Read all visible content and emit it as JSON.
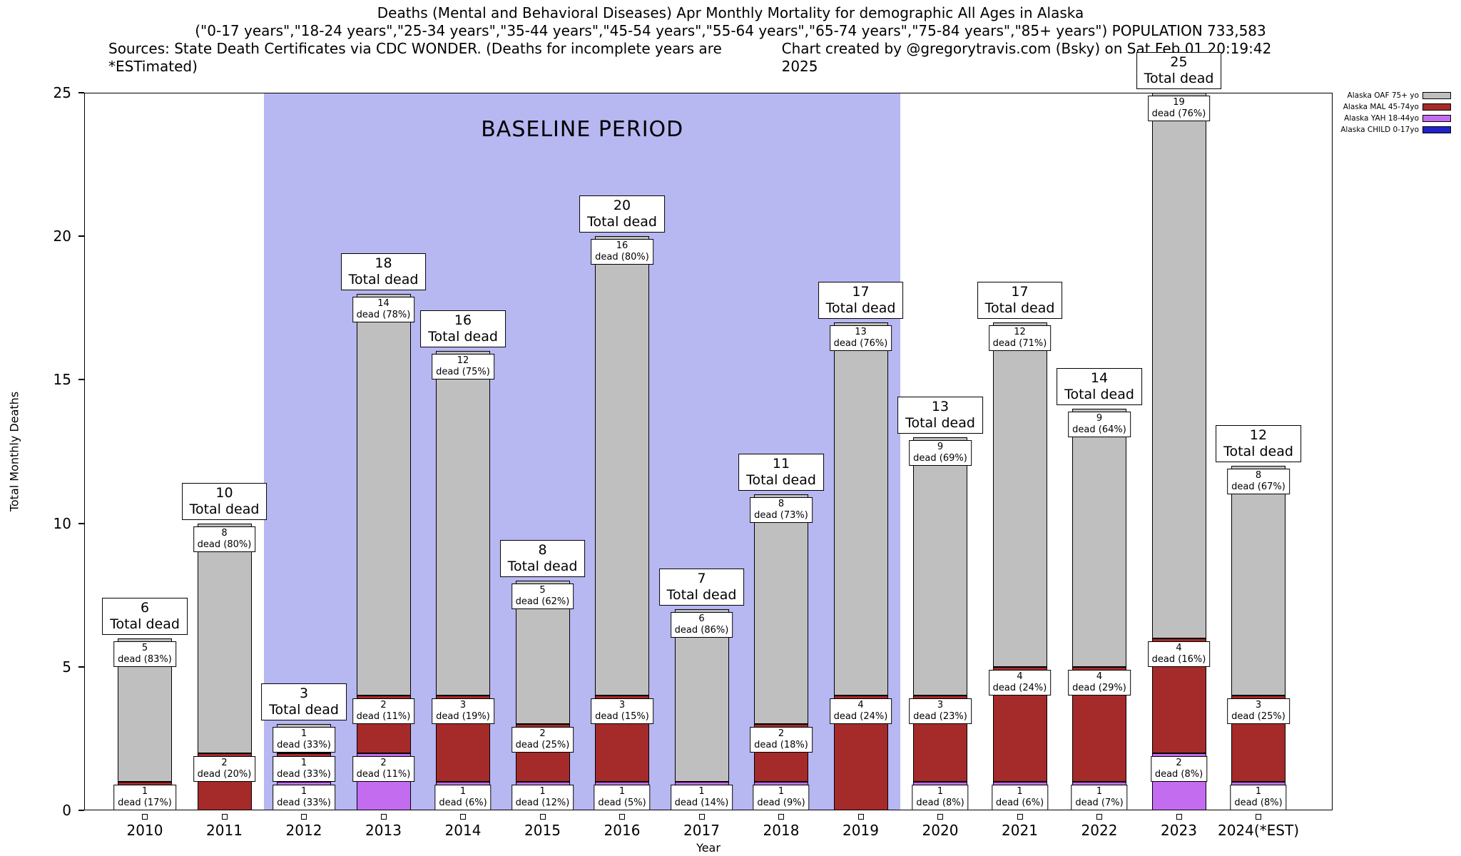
{
  "title": {
    "line1": "Deaths (Mental and Behavioral Diseases) Apr Monthly Mortality for demographic All Ages in Alaska",
    "line2": "(\"0-17 years\",\"18-24 years\",\"25-34 years\",\"35-44 years\",\"45-54 years\",\"55-64 years\",\"65-74 years\",\"75-84 years\",\"85+ years\") POPULATION 733,583",
    "line3_left": "Sources: State Death Certificates via CDC WONDER. (Deaths for incomplete years are *ESTimated)",
    "line3_right": "Chart created by @gregorytravis.com (Bsky) on Sat Feb 01 20:19:42 2025"
  },
  "legend": {
    "entries": [
      {
        "series": "OAF",
        "label": "Alaska OAF 75+ yo",
        "color": "#bfbfbf"
      },
      {
        "series": "MAL",
        "label": "Alaska MAL 45-74yo",
        "color": "#a52a2a"
      },
      {
        "series": "YAH",
        "label": "Alaska YAH 18-44yo",
        "color": "#c46cf0"
      },
      {
        "series": "CHILD",
        "label": "Alaska CHILD 0-17yo",
        "color": "#2222cc"
      }
    ]
  },
  "chart_data": {
    "type": "bar",
    "stacked": true,
    "title": "Deaths (Mental and Behavioral Diseases) Apr Monthly Mortality for demographic All Ages in Alaska",
    "xlabel": "Year",
    "ylabel": "Total Monthly Deaths",
    "ylim": [
      0,
      25
    ],
    "yticks": [
      0,
      5,
      10,
      15,
      20,
      25
    ],
    "baseline": {
      "label": "BASELINE PERIOD",
      "from_year": "2012",
      "to_year": "2019",
      "color": "#b7b7f2"
    },
    "categories": [
      "2010",
      "2011",
      "2012",
      "2013",
      "2014",
      "2015",
      "2016",
      "2017",
      "2018",
      "2019",
      "2020",
      "2021",
      "2022",
      "2023",
      "2024(*EST)"
    ],
    "series": [
      {
        "key": "CHILD",
        "name": "Alaska CHILD 0-17yo",
        "color": "#2222cc",
        "values": [
          0,
          0,
          0,
          0,
          0,
          0,
          0,
          0,
          0,
          0,
          0,
          0,
          0,
          0,
          0
        ]
      },
      {
        "key": "YAH",
        "name": "Alaska YAH 18-44yo",
        "color": "#c46cf0",
        "values": [
          0,
          0,
          1,
          2,
          1,
          1,
          1,
          1,
          1,
          0,
          1,
          1,
          1,
          2,
          1
        ]
      },
      {
        "key": "MAL",
        "name": "Alaska MAL 45-74yo",
        "color": "#a52a2a",
        "values": [
          1,
          2,
          1,
          2,
          3,
          2,
          3,
          0,
          2,
          4,
          3,
          4,
          4,
          4,
          3
        ]
      },
      {
        "key": "OAF",
        "name": "Alaska OAF 75+ yo",
        "color": "#bfbfbf",
        "values": [
          5,
          8,
          1,
          14,
          12,
          5,
          16,
          6,
          8,
          13,
          9,
          12,
          9,
          19,
          8
        ]
      }
    ],
    "totals": [
      6,
      10,
      3,
      18,
      16,
      8,
      20,
      7,
      11,
      17,
      13,
      17,
      14,
      25,
      12
    ],
    "total_label_suffix": "Total dead",
    "bars": [
      {
        "year": "2010",
        "total": 6,
        "segments": [
          {
            "series": "MAL",
            "value": 1,
            "label": "dead (17%)"
          },
          {
            "series": "OAF",
            "value": 5,
            "label": "dead (83%)"
          }
        ]
      },
      {
        "year": "2011",
        "total": 10,
        "segments": [
          {
            "series": "MAL",
            "value": 2,
            "label": "dead (20%)"
          },
          {
            "series": "OAF",
            "value": 8,
            "label": "dead (80%)"
          }
        ]
      },
      {
        "year": "2012",
        "total": 3,
        "segments": [
          {
            "series": "YAH",
            "value": 1,
            "label": "dead (33%)"
          },
          {
            "series": "MAL",
            "value": 1,
            "label": "dead (33%)"
          },
          {
            "series": "OAF",
            "value": 1,
            "label": "dead (33%)"
          }
        ]
      },
      {
        "year": "2013",
        "total": 18,
        "segments": [
          {
            "series": "YAH",
            "value": 2,
            "label": "dead (11%)"
          },
          {
            "series": "MAL",
            "value": 2,
            "label": "dead (11%)"
          },
          {
            "series": "OAF",
            "value": 14,
            "label": "dead (78%)"
          }
        ]
      },
      {
        "year": "2014",
        "total": 16,
        "segments": [
          {
            "series": "YAH",
            "value": 1,
            "label": "dead (6%)"
          },
          {
            "series": "MAL",
            "value": 3,
            "label": "dead (19%)"
          },
          {
            "series": "OAF",
            "value": 12,
            "label": "dead (75%)"
          }
        ]
      },
      {
        "year": "2015",
        "total": 8,
        "segments": [
          {
            "series": "YAH",
            "value": 1,
            "label": "dead (12%)"
          },
          {
            "series": "MAL",
            "value": 2,
            "label": "dead (25%)"
          },
          {
            "series": "OAF",
            "value": 5,
            "label": "dead (62%)"
          }
        ]
      },
      {
        "year": "2016",
        "total": 20,
        "segments": [
          {
            "series": "YAH",
            "value": 1,
            "label": "dead (5%)"
          },
          {
            "series": "MAL",
            "value": 3,
            "label": "dead (15%)"
          },
          {
            "series": "OAF",
            "value": 16,
            "label": "dead (80%)"
          }
        ]
      },
      {
        "year": "2017",
        "total": 7,
        "segments": [
          {
            "series": "YAH",
            "value": 1,
            "label": "dead (14%)"
          },
          {
            "series": "OAF",
            "value": 6,
            "label": "dead (86%)"
          }
        ]
      },
      {
        "year": "2018",
        "total": 11,
        "segments": [
          {
            "series": "YAH",
            "value": 1,
            "label": "dead (9%)"
          },
          {
            "series": "MAL",
            "value": 2,
            "label": "dead (18%)"
          },
          {
            "series": "OAF",
            "value": 8,
            "label": "dead (73%)"
          }
        ]
      },
      {
        "year": "2019",
        "total": 17,
        "segments": [
          {
            "series": "MAL",
            "value": 4,
            "label": "dead (24%)"
          },
          {
            "series": "OAF",
            "value": 13,
            "label": "dead (76%)"
          }
        ]
      },
      {
        "year": "2020",
        "total": 13,
        "segments": [
          {
            "series": "YAH",
            "value": 1,
            "label": "dead (8%)"
          },
          {
            "series": "MAL",
            "value": 3,
            "label": "dead (23%)"
          },
          {
            "series": "OAF",
            "value": 9,
            "label": "dead (69%)"
          }
        ]
      },
      {
        "year": "2021",
        "total": 17,
        "segments": [
          {
            "series": "YAH",
            "value": 1,
            "label": "dead (6%)"
          },
          {
            "series": "MAL",
            "value": 4,
            "label": "dead (24%)"
          },
          {
            "series": "OAF",
            "value": 12,
            "label": "dead (71%)"
          }
        ]
      },
      {
        "year": "2022",
        "total": 14,
        "segments": [
          {
            "series": "YAH",
            "value": 1,
            "label": "dead (7%)"
          },
          {
            "series": "MAL",
            "value": 4,
            "label": "dead (29%)"
          },
          {
            "series": "OAF",
            "value": 9,
            "label": "dead (64%)"
          }
        ]
      },
      {
        "year": "2023",
        "total": 25,
        "segments": [
          {
            "series": "YAH",
            "value": 2,
            "label": "dead (8%)"
          },
          {
            "series": "MAL",
            "value": 4,
            "label": "dead (16%)"
          },
          {
            "series": "OAF",
            "value": 19,
            "label": "dead (76%)"
          }
        ]
      },
      {
        "year": "2024(*EST)",
        "total": 12,
        "segments": [
          {
            "series": "YAH",
            "value": 1,
            "label": "dead (8%)"
          },
          {
            "series": "MAL",
            "value": 3,
            "label": "dead (25%)"
          },
          {
            "series": "OAF",
            "value": 8,
            "label": "dead (67%)"
          }
        ]
      }
    ]
  }
}
